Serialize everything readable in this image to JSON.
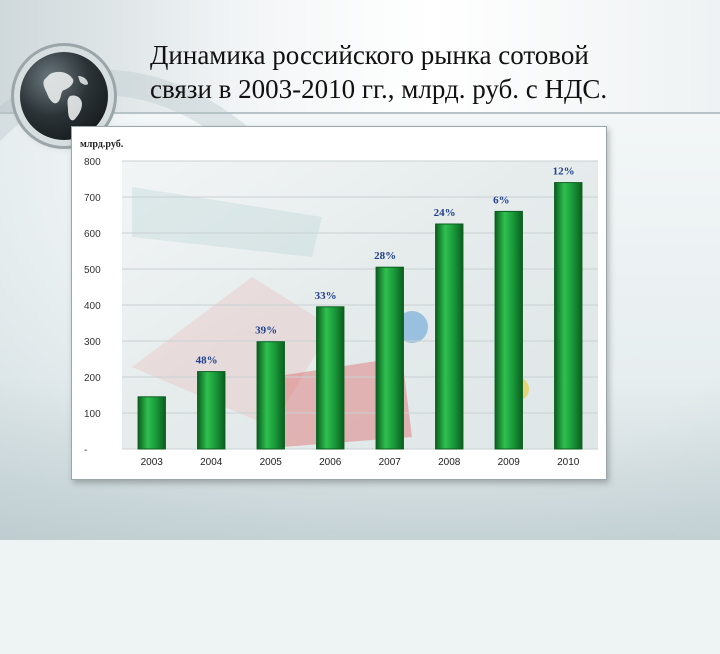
{
  "slide": {
    "title_line1": "Динамика российского рынка сотовой",
    "title_line2": "связи в 2003-2010 гг., млрд. руб. с НДС."
  },
  "colors": {
    "bar": "#1a9a3a",
    "bar_dark": "#0b5e1f",
    "data_label": "#1f3f8f"
  },
  "icons": [
    "globe-icon"
  ],
  "chart_data": {
    "type": "bar",
    "title": "",
    "xlabel": "",
    "ylabel": "млрд.руб.",
    "ylim": [
      0,
      800
    ],
    "y_ticks": [
      "-",
      "100",
      "200",
      "300",
      "400",
      "500",
      "600",
      "700",
      "800"
    ],
    "grid": true,
    "categories": [
      "2003",
      "2004",
      "2005",
      "2006",
      "2007",
      "2008",
      "2009",
      "2010"
    ],
    "values": [
      145,
      215,
      298,
      395,
      505,
      625,
      660,
      740
    ],
    "data_labels": [
      "",
      "48%",
      "39%",
      "33%",
      "28%",
      "24%",
      "6%",
      "12%"
    ]
  }
}
